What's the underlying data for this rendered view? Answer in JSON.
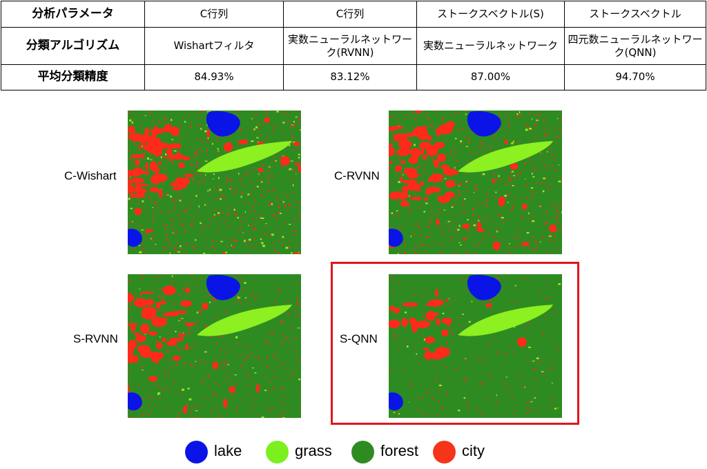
{
  "table": {
    "rows": [
      {
        "label": "分析パラメータ",
        "cells": [
          "C行列",
          "C行列",
          "ストークスベクトル(S)",
          "ストークスベクトル"
        ]
      },
      {
        "label": "分類アルゴリズム",
        "cells": [
          "Wishartフィルタ",
          "実数ニューラルネットワーク(RVNN)",
          "実数ニューラルネットワーク",
          "四元数ニューラルネットワーク(QNN)"
        ]
      },
      {
        "label": "平均分類精度",
        "cells": [
          "84.93%",
          "83.12%",
          "87.00%",
          "94.70%"
        ]
      }
    ]
  },
  "panels": [
    {
      "label": "C-Wishart",
      "city_density": "high",
      "grass_speckle": "high"
    },
    {
      "label": "C-RVNN",
      "city_density": "high",
      "grass_speckle": "medium"
    },
    {
      "label": "S-RVNN",
      "city_density": "medium",
      "grass_speckle": "low"
    },
    {
      "label": "S-QNN",
      "city_density": "low",
      "grass_speckle": "low",
      "highlighted": true
    }
  ],
  "legend": [
    {
      "label": "lake",
      "color": "#0a14e6"
    },
    {
      "label": "grass",
      "color": "#7cf01e"
    },
    {
      "label": "forest",
      "color": "#2e8b22"
    },
    {
      "label": "city",
      "color": "#f5341a"
    }
  ],
  "class_colors": {
    "lake": "#0a14e6",
    "grass": "#8cf021",
    "forest": "#2e8b22",
    "city": "#ff2a1a"
  }
}
